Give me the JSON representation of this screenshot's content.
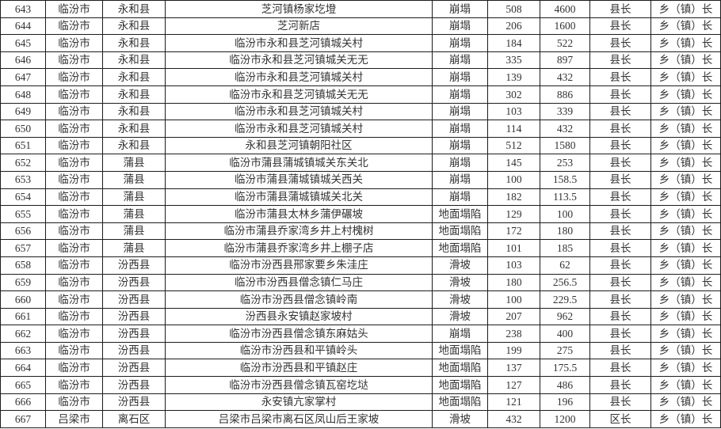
{
  "table": {
    "rows": [
      [
        "643",
        "临汾市",
        "永和县",
        "芝河镇杨家圪墱",
        "崩塌",
        "508",
        "4600",
        "县长",
        "乡（镇）长"
      ],
      [
        "644",
        "临汾市",
        "永和县",
        "芝河新店",
        "崩塌",
        "206",
        "1600",
        "县长",
        "乡（镇）长"
      ],
      [
        "645",
        "临汾市",
        "永和县",
        "临汾市永和县芝河镇城关村",
        "崩塌",
        "184",
        "522",
        "县长",
        "乡（镇）长"
      ],
      [
        "646",
        "临汾市",
        "永和县",
        "临汾市永和县芝河镇城关无无",
        "崩塌",
        "335",
        "897",
        "县长",
        "乡（镇）长"
      ],
      [
        "647",
        "临汾市",
        "永和县",
        "临汾市永和县芝河镇城关村",
        "崩塌",
        "139",
        "432",
        "县长",
        "乡（镇）长"
      ],
      [
        "648",
        "临汾市",
        "永和县",
        "临汾市永和县芝河镇城关无无",
        "崩塌",
        "302",
        "886",
        "县长",
        "乡（镇）长"
      ],
      [
        "649",
        "临汾市",
        "永和县",
        "临汾市永和县芝河镇城关村",
        "崩塌",
        "103",
        "339",
        "县长",
        "乡（镇）长"
      ],
      [
        "650",
        "临汾市",
        "永和县",
        "临汾市永和县芝河镇城关村",
        "崩塌",
        "114",
        "432",
        "县长",
        "乡（镇）长"
      ],
      [
        "651",
        "临汾市",
        "永和县",
        "永和县芝河镇朝阳社区",
        "崩塌",
        "512",
        "1580",
        "县长",
        "乡（镇）长"
      ],
      [
        "652",
        "临汾市",
        "蒲县",
        "临汾市蒲县蒲城镇城关东关北",
        "崩塌",
        "145",
        "253",
        "县长",
        "乡（镇）长"
      ],
      [
        "653",
        "临汾市",
        "蒲县",
        "临汾市蒲县蒲城镇城关西关",
        "崩塌",
        "100",
        "158.5",
        "县长",
        "乡（镇）长"
      ],
      [
        "654",
        "临汾市",
        "蒲县",
        "临汾市蒲县蒲城镇城关北关",
        "崩塌",
        "182",
        "113.5",
        "县长",
        "乡（镇）长"
      ],
      [
        "655",
        "临汾市",
        "蒲县",
        "临汾市蒲县太林乡蒲伊碾坡",
        "地面塌陷",
        "129",
        "100",
        "县长",
        "乡（镇）长"
      ],
      [
        "656",
        "临汾市",
        "蒲县",
        "临汾市蒲县乔家湾乡井上村槐树",
        "地面塌陷",
        "172",
        "180",
        "县长",
        "乡（镇）长"
      ],
      [
        "657",
        "临汾市",
        "蒲县",
        "临汾市蒲县乔家湾乡井上棚子店",
        "地面塌陷",
        "101",
        "185",
        "县长",
        "乡（镇）长"
      ],
      [
        "658",
        "临汾市",
        "汾西县",
        "临汾市汾西县邢家要乡朱洼庄",
        "滑坡",
        "103",
        "62",
        "县长",
        "乡（镇）长"
      ],
      [
        "659",
        "临汾市",
        "汾西县",
        "临汾市汾西县僧念镇仁马庄",
        "滑坡",
        "180",
        "256.5",
        "县长",
        "乡（镇）长"
      ],
      [
        "660",
        "临汾市",
        "汾西县",
        "临汾市汾西县僧念镇岭南",
        "滑坡",
        "100",
        "229.5",
        "县长",
        "乡（镇）长"
      ],
      [
        "661",
        "临汾市",
        "汾西县",
        "汾西县永安镇赵家坡村",
        "滑坡",
        "207",
        "962",
        "县长",
        "乡（镇）长"
      ],
      [
        "662",
        "临汾市",
        "汾西县",
        "临汾市汾西县僧念镇东麻姑头",
        "崩塌",
        "238",
        "400",
        "县长",
        "乡（镇）长"
      ],
      [
        "663",
        "临汾市",
        "汾西县",
        "临汾市汾西县和平镇岭头",
        "地面塌陷",
        "199",
        "275",
        "县长",
        "乡（镇）长"
      ],
      [
        "664",
        "临汾市",
        "汾西县",
        "临汾市汾西县和平镇赵庄",
        "地面塌陷",
        "137",
        "175.5",
        "县长",
        "乡（镇）长"
      ],
      [
        "665",
        "临汾市",
        "汾西县",
        "临汾市汾西县僧念镇瓦窑圪垯",
        "地面塌陷",
        "127",
        "486",
        "县长",
        "乡（镇）长"
      ],
      [
        "666",
        "临汾市",
        "汾西县",
        "永安镇亢家掌村",
        "地面塌陷",
        "121",
        "196",
        "县长",
        "乡（镇）长"
      ],
      [
        "667",
        "吕梁市",
        "离石区",
        "吕梁市吕梁市离石区凤山后王家坡",
        "滑坡",
        "432",
        "1200",
        "区长",
        "乡（镇）长"
      ]
    ],
    "text_color": "#333333",
    "border_color": "#1c1c1c",
    "background_color": "#ffffff"
  }
}
